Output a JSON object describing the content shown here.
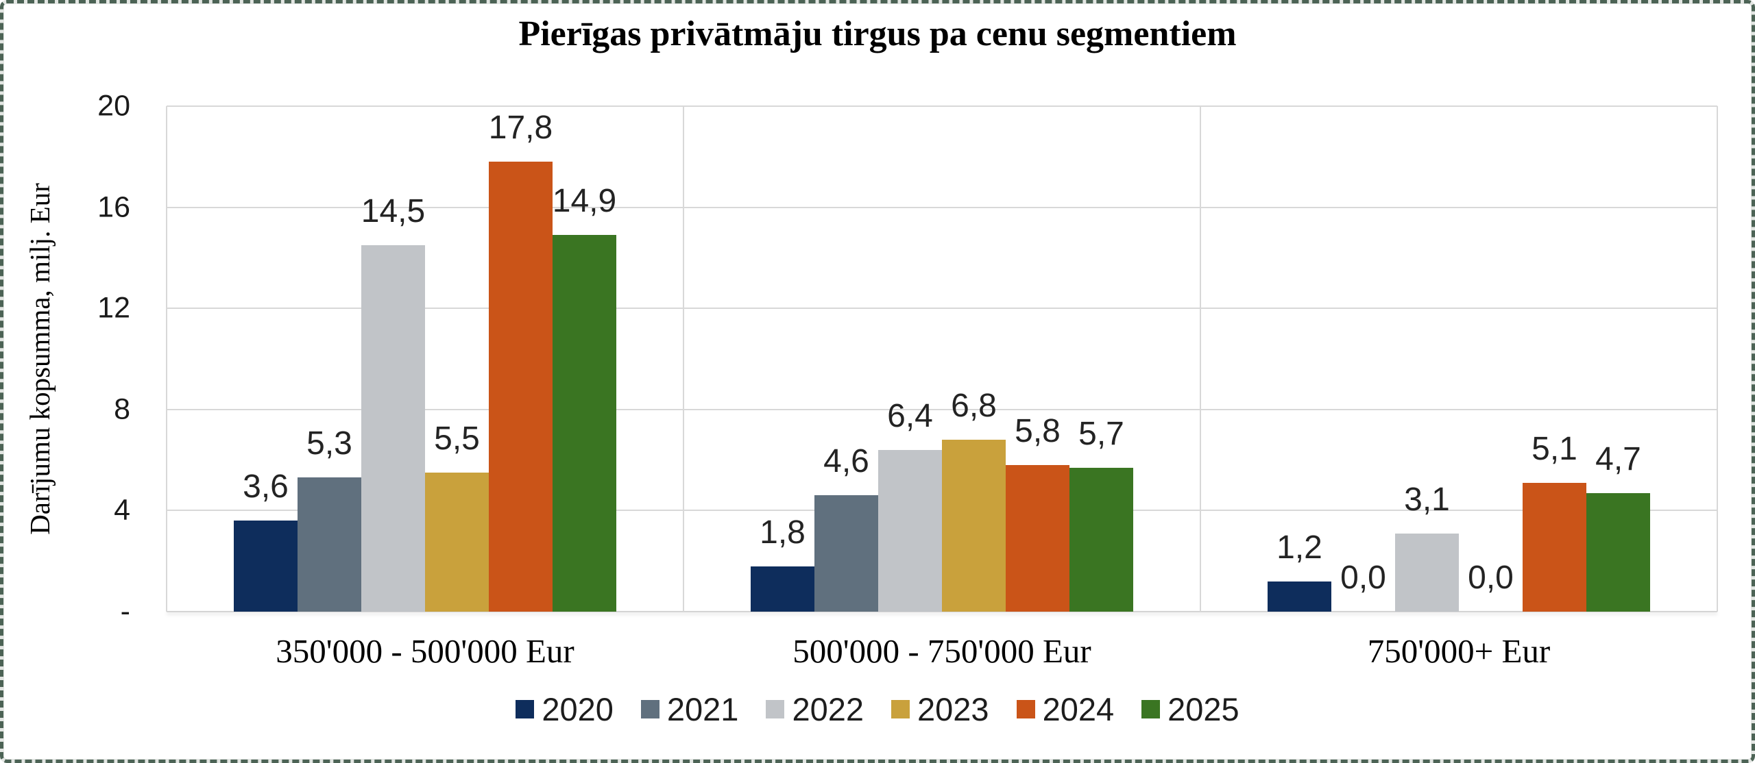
{
  "chart": {
    "title": "Pierīgas privātmāju tirgus pa cenu segmentiem",
    "ylabel": "Darījumu kopsumma, milj. Eur"
  },
  "chart_data": {
    "type": "bar",
    "title": "Pierīgas privātmāju tirgus pa cenu segmentiem",
    "xlabel": "",
    "ylabel": "Darījumu kopsumma, milj. Eur",
    "categories": [
      "350'000 - 500'000 Eur",
      "500'000 - 750'000 Eur",
      "750'000+ Eur"
    ],
    "series": [
      {
        "name": "2020",
        "color": "#0e2d5c",
        "values": [
          3.6,
          1.8,
          1.2
        ]
      },
      {
        "name": "2021",
        "color": "#60707e",
        "values": [
          5.3,
          4.6,
          0.0
        ]
      },
      {
        "name": "2022",
        "color": "#c1c4c8",
        "values": [
          14.5,
          6.4,
          3.1
        ]
      },
      {
        "name": "2023",
        "color": "#c9a13c",
        "values": [
          5.5,
          6.8,
          0.0
        ]
      },
      {
        "name": "2024",
        "color": "#ca5418",
        "values": [
          17.8,
          5.8,
          5.1
        ]
      },
      {
        "name": "2025",
        "color": "#3a7522",
        "values": [
          14.9,
          5.7,
          4.7
        ]
      }
    ],
    "ylim": [
      0,
      20
    ],
    "yticks": [
      {
        "value": 0,
        "label": "-"
      },
      {
        "value": 4,
        "label": "4"
      },
      {
        "value": 8,
        "label": "8"
      },
      {
        "value": 12,
        "label": "12"
      },
      {
        "value": 16,
        "label": "16"
      },
      {
        "value": 20,
        "label": "20"
      }
    ],
    "grid": true,
    "legend_position": "bottom",
    "decimal_separator": ",",
    "value_labels": true
  },
  "frame": {
    "border_color": "#4c6355",
    "border_band_color": "#e3e6e3"
  }
}
